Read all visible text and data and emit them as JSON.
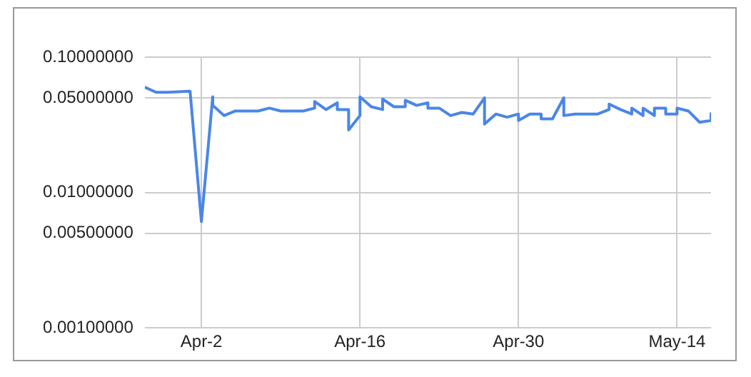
{
  "chart_data": {
    "type": "line",
    "log": "y",
    "grid": true,
    "legend": false,
    "marker": "none",
    "line_style": "solid",
    "xlim": [
      "--03-28",
      "--05-17"
    ],
    "xticks": [
      {
        "value": "--04-02",
        "label": "Apr-2"
      },
      {
        "value": "--04-16",
        "label": "Apr-16"
      },
      {
        "value": "--04-30",
        "label": "Apr-30"
      },
      {
        "value": "--05-14",
        "label": "May-14"
      }
    ],
    "ylim": [
      0.001,
      0.1
    ],
    "yticks": [
      {
        "value": 0.001,
        "label": "0.00100000"
      },
      {
        "value": 0.005,
        "label": "0.00500000"
      },
      {
        "value": 0.01,
        "label": "0.01000000"
      },
      {
        "value": 0.05,
        "label": "0.05000000"
      },
      {
        "value": 0.1,
        "label": "0.10000000"
      }
    ],
    "x": [
      "--03-28",
      "--03-29",
      "--03-30",
      "--04-01",
      "--04-02",
      "--04-03",
      "--04-03",
      "--04-04",
      "--04-05",
      "--04-07",
      "--04-08",
      "--04-09",
      "--04-11",
      "--04-12",
      "--04-12",
      "--04-13",
      "--04-14",
      "--04-14",
      "--04-15",
      "--04-15",
      "--04-16",
      "--04-16",
      "--04-17",
      "--04-18",
      "--04-18",
      "--04-19",
      "--04-20",
      "--04-20",
      "--04-21",
      "--04-22",
      "--04-22",
      "--04-23",
      "--04-24",
      "--04-25",
      "--04-26",
      "--04-27",
      "--04-27",
      "--04-28",
      "--04-29",
      "--04-30",
      "--04-30",
      "--05-01",
      "--05-02",
      "--05-02",
      "--05-03",
      "--05-04",
      "--05-04",
      "--05-05",
      "--05-07",
      "--05-08",
      "--05-08",
      "--05-09",
      "--05-10",
      "--05-10",
      "--05-11",
      "--05-11",
      "--05-12",
      "--05-12",
      "--05-13",
      "--05-13",
      "--05-14",
      "--05-14",
      "--05-15",
      "--05-16",
      "--05-17",
      "--05-17"
    ],
    "series": [
      {
        "color": "#4a86e8",
        "values": [
          0.06,
          0.055,
          0.055,
          0.056,
          0.0061,
          0.051,
          0.044,
          0.037,
          0.04,
          0.04,
          0.042,
          0.04,
          0.04,
          0.042,
          0.047,
          0.041,
          0.046,
          0.041,
          0.041,
          0.029,
          0.037,
          0.051,
          0.043,
          0.041,
          0.049,
          0.043,
          0.043,
          0.048,
          0.044,
          0.046,
          0.042,
          0.042,
          0.037,
          0.039,
          0.038,
          0.05,
          0.032,
          0.038,
          0.036,
          0.038,
          0.034,
          0.038,
          0.038,
          0.035,
          0.035,
          0.05,
          0.037,
          0.038,
          0.038,
          0.041,
          0.045,
          0.041,
          0.038,
          0.042,
          0.037,
          0.042,
          0.037,
          0.042,
          0.042,
          0.038,
          0.038,
          0.042,
          0.04,
          0.033,
          0.034,
          0.039
        ]
      }
    ]
  }
}
